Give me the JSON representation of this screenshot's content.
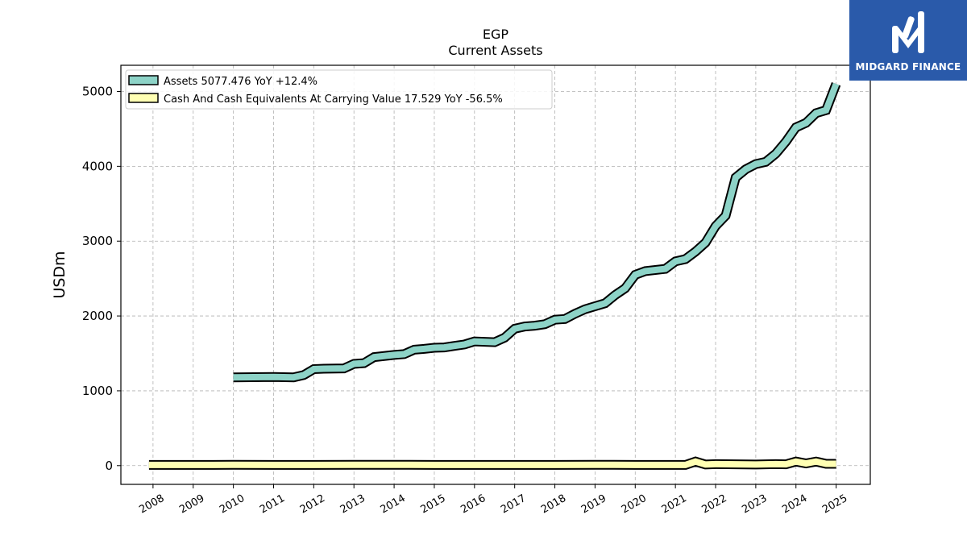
{
  "brand": {
    "name": "MIDGARD FINANCE",
    "color": "#2a5aaa",
    "icon": "midgard-logo-icon"
  },
  "chart_data": {
    "type": "line",
    "title": "EGP",
    "subtitle": "Current  Assets",
    "ylabel": "USDm",
    "xlabel": "",
    "ylim": [
      -250,
      5350
    ],
    "yticks": [
      0,
      1000,
      2000,
      3000,
      4000,
      5000
    ],
    "xlim": [
      2007.2,
      2025.85
    ],
    "xticks": [
      2008,
      2009,
      2010,
      2011,
      2012,
      2013,
      2014,
      2015,
      2016,
      2017,
      2018,
      2019,
      2020,
      2021,
      2022,
      2023,
      2024,
      2025
    ],
    "grid": true,
    "legend_position": "top-left",
    "series": [
      {
        "name": "Assets  5077.476 YoY +12.4%",
        "color": "#8dd3c7",
        "x": [
          2010.0,
          2011.0,
          2011.5,
          2011.75,
          2012.0,
          2012.25,
          2012.75,
          2013.0,
          2013.25,
          2013.5,
          2014.0,
          2014.25,
          2014.5,
          2014.75,
          2015.0,
          2015.25,
          2015.5,
          2015.75,
          2016.0,
          2016.5,
          2016.75,
          2017.0,
          2017.25,
          2017.5,
          2017.75,
          2018.0,
          2018.25,
          2018.5,
          2018.75,
          2019.0,
          2019.25,
          2019.5,
          2019.75,
          2020.0,
          2020.25,
          2020.75,
          2021.0,
          2021.25,
          2021.5,
          2021.75,
          2022.0,
          2022.25,
          2022.5,
          2022.75,
          2023.0,
          2023.25,
          2023.5,
          2023.75,
          2024.0,
          2024.25,
          2024.5,
          2024.75,
          2025.0
        ],
        "values": [
          1180,
          1185,
          1180,
          1210,
          1290,
          1295,
          1300,
          1360,
          1370,
          1450,
          1480,
          1490,
          1550,
          1560,
          1575,
          1580,
          1600,
          1620,
          1660,
          1650,
          1710,
          1830,
          1860,
          1870,
          1890,
          1950,
          1960,
          2030,
          2090,
          2130,
          2170,
          2280,
          2370,
          2550,
          2600,
          2630,
          2730,
          2760,
          2860,
          2980,
          3200,
          3340,
          3850,
          3960,
          4030,
          4060,
          4170,
          4330,
          4520,
          4580,
          4710,
          4750,
          5100
        ]
      },
      {
        "name": "Cash And Cash Equivalents At Carrying Value  17.529 YoY -56.5%",
        "color": "#ffffb3",
        "x": [
          2007.9,
          2008.5,
          2009.0,
          2009.5,
          2010.0,
          2011.0,
          2012.0,
          2013.0,
          2014.0,
          2015.0,
          2016.0,
          2017.0,
          2018.0,
          2019.0,
          2020.0,
          2021.0,
          2021.25,
          2021.5,
          2021.75,
          2022.0,
          2022.5,
          2023.0,
          2023.5,
          2023.75,
          2024.0,
          2024.25,
          2024.5,
          2024.75,
          2025.0
        ],
        "values": [
          10,
          10,
          10,
          10,
          12,
          10,
          10,
          12,
          12,
          10,
          10,
          10,
          10,
          12,
          10,
          10,
          10,
          55,
          15,
          20,
          18,
          15,
          20,
          18,
          55,
          30,
          55,
          25,
          25
        ]
      }
    ]
  }
}
